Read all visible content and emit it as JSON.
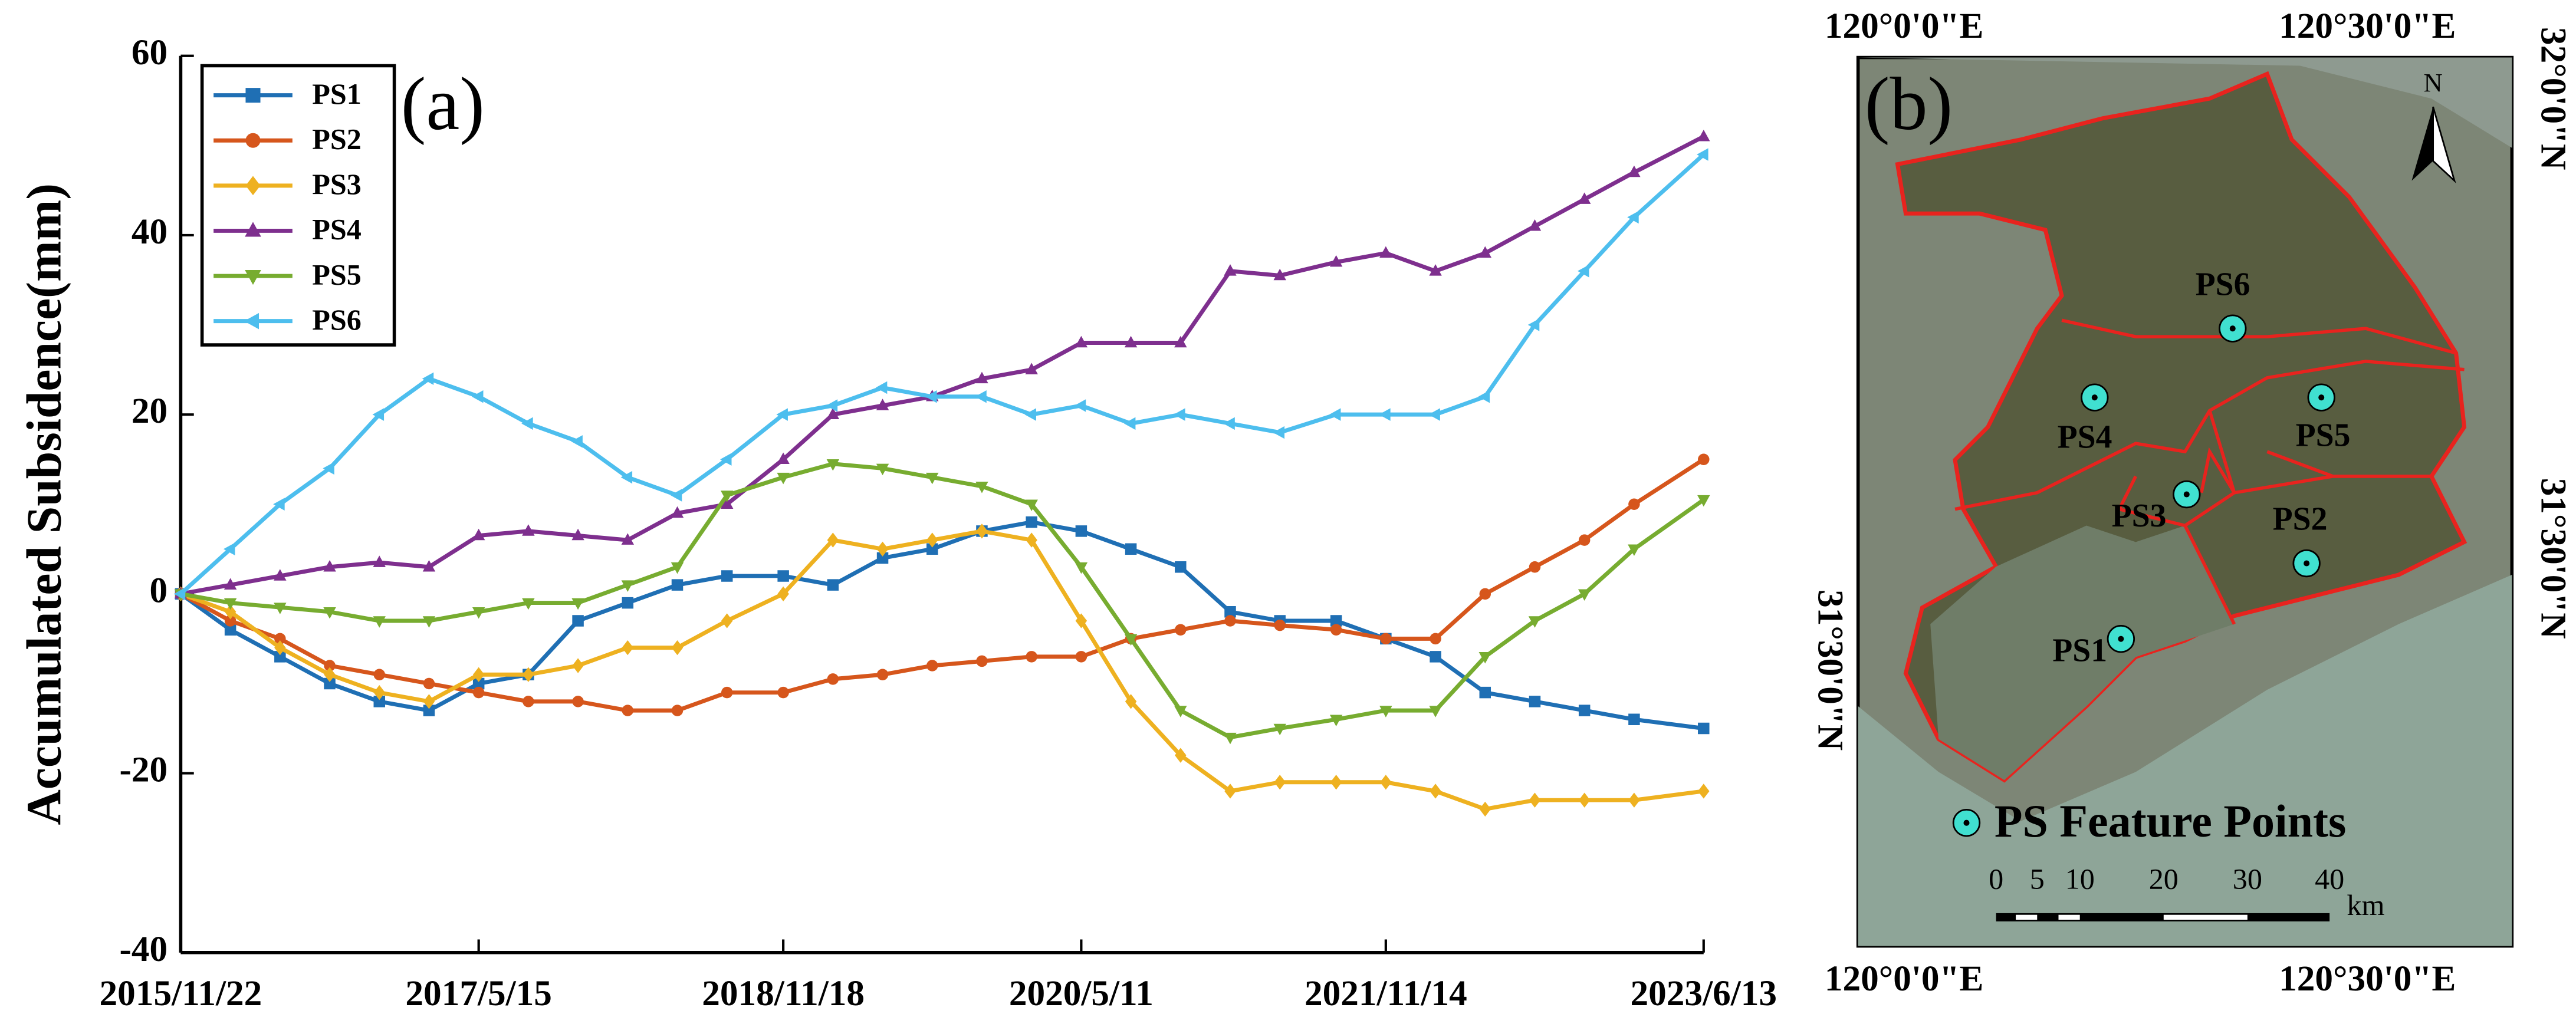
{
  "chart_data": [
    {
      "type": "line",
      "ylabel": "Accumulated Subsidence(mm)",
      "panel_label": "(a)",
      "x": [
        "2015/11/22",
        "2016/2/20",
        "2016/5/20",
        "2016/8/18",
        "2016/11/16",
        "2017/2/14",
        "2017/5/15",
        "2017/8/13",
        "2017/11/11",
        "2018/2/9",
        "2018/5/10",
        "2018/8/8",
        "2018/11/18",
        "2019/2/16",
        "2019/5/17",
        "2019/8/15",
        "2019/11/13",
        "2020/2/11",
        "2020/5/11",
        "2020/8/9",
        "2020/11/7",
        "2021/2/5",
        "2021/5/6",
        "2021/8/16",
        "2021/11/14",
        "2022/2/12",
        "2022/5/13",
        "2022/8/11",
        "2022/11/9",
        "2023/2/7",
        "2023/6/13"
      ],
      "xlim": [
        "2015/11/22",
        "2023/6/13"
      ],
      "xticks": [
        "2015/11/22",
        "2017/5/15",
        "2018/11/18",
        "2020/5/11",
        "2021/11/14",
        "2023/6/13"
      ],
      "ylim": [
        -40,
        60
      ],
      "yticks": [
        -40,
        -20,
        0,
        20,
        40,
        60
      ],
      "series": [
        {
          "name": "PS1",
          "color": "#1f6fb4",
          "marker": "square",
          "values": [
            0,
            -4,
            -7,
            -10,
            -12,
            -13,
            -10,
            -9,
            -3,
            -1,
            1,
            2,
            2,
            1,
            4,
            5,
            7,
            8,
            7,
            5,
            3,
            -2,
            -3,
            -3,
            -5,
            -7,
            -11,
            -12,
            -13,
            -14,
            -15
          ]
        },
        {
          "name": "PS2",
          "color": "#d6561c",
          "marker": "circle",
          "values": [
            0,
            -3,
            -5,
            -8,
            -9,
            -10,
            -11,
            -12,
            -12,
            -13,
            -13,
            -11,
            -11,
            -9.5,
            -9,
            -8,
            -7.5,
            -7,
            -7,
            -5,
            -4,
            -3,
            -3.5,
            -4,
            -5,
            -5,
            0,
            3,
            6,
            10,
            15
          ]
        },
        {
          "name": "PS3",
          "color": "#eeb120",
          "marker": "diamond",
          "values": [
            0,
            -2,
            -6,
            -9,
            -11,
            -12,
            -9,
            -9,
            -8,
            -6,
            -6,
            -3,
            0,
            6,
            5,
            6,
            7,
            6,
            -3,
            -12,
            -18,
            -22,
            -21,
            -21,
            -21,
            -22,
            -24,
            -23,
            -23,
            -23,
            -22
          ]
        },
        {
          "name": "PS4",
          "color": "#7e2f8e",
          "marker": "triangle-up",
          "values": [
            0,
            1,
            2,
            3,
            3.5,
            3,
            6.5,
            7,
            6.5,
            6,
            9,
            10,
            15,
            20,
            21,
            22,
            24,
            25,
            28,
            28,
            28,
            36,
            35.5,
            37,
            38,
            36,
            38,
            41,
            44,
            47,
            51
          ]
        },
        {
          "name": "PS5",
          "color": "#77ac30",
          "marker": "triangle-down",
          "values": [
            0,
            -1,
            -1.5,
            -2,
            -3,
            -3,
            -2,
            -1,
            -1,
            1,
            3,
            11,
            13,
            14.5,
            14,
            13,
            12,
            10,
            3,
            -5,
            -13,
            -16,
            -15,
            -14,
            -13,
            -13,
            -7,
            -3,
            0,
            5,
            10.5
          ]
        },
        {
          "name": "PS6",
          "color": "#4dbeee",
          "marker": "triangle-left",
          "values": [
            0,
            5,
            10,
            14,
            20,
            24,
            22,
            19,
            17,
            13,
            11,
            15,
            20,
            21,
            23,
            22,
            22,
            20,
            21,
            19,
            20,
            19,
            18,
            20,
            20,
            20,
            22,
            30,
            36,
            42,
            49
          ]
        }
      ]
    },
    {
      "type": "map",
      "panel_label": "(b)",
      "lon_labels": [
        "120°0'0\"E",
        "120°30'0\"E"
      ],
      "lat_labels": [
        "32°0'0\"N",
        "31°30'0\"N"
      ],
      "points": [
        "PS1",
        "PS2",
        "PS3",
        "PS4",
        "PS5",
        "PS6"
      ],
      "legend": "PS Feature Points",
      "scale_labels": [
        0,
        5,
        10,
        20,
        30,
        40
      ],
      "scale_unit": "km",
      "north": "N"
    }
  ]
}
